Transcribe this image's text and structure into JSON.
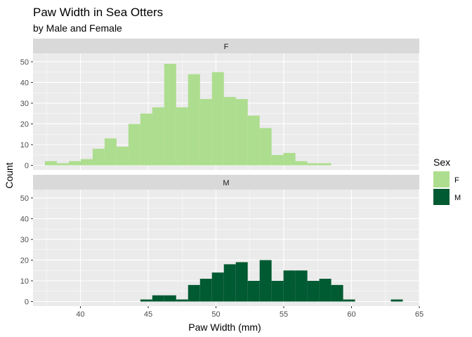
{
  "chart_data": {
    "type": "bar",
    "title": "Paw Width in Sea Otters",
    "subtitle": "by Male and Female",
    "xlabel": "Paw Width (mm)",
    "ylabel": "Count",
    "xlim": [
      36.5,
      65.0
    ],
    "ylim": [
      0,
      50
    ],
    "x_ticks": [
      40,
      45,
      50,
      55,
      60,
      65
    ],
    "y_ticks": [
      0,
      10,
      20,
      30,
      40,
      50
    ],
    "bin_width": 0.88,
    "bin_start": 37.38,
    "grid": true,
    "facets": [
      "F",
      "M"
    ],
    "legend": {
      "title": "Sex",
      "position": "right",
      "items": [
        {
          "label": "F",
          "color": "#addd8e"
        },
        {
          "label": "M",
          "color": "#005a32"
        }
      ]
    },
    "series": [
      {
        "name": "F",
        "color": "#addd8e",
        "values": [
          2,
          1,
          2,
          3,
          8,
          13,
          9,
          20,
          25,
          28,
          49,
          28,
          44,
          32,
          45,
          33,
          32,
          24,
          18,
          5,
          6,
          2,
          1,
          1,
          0,
          0,
          0,
          0,
          0,
          0
        ]
      },
      {
        "name": "M",
        "color": "#005a32",
        "values": [
          0,
          0,
          0,
          0,
          0,
          0,
          0,
          0,
          1,
          3,
          3,
          1,
          8,
          11,
          14,
          18,
          19,
          10,
          20,
          10,
          15,
          15,
          10,
          11,
          8,
          1,
          0,
          0,
          0,
          1
        ]
      }
    ]
  }
}
